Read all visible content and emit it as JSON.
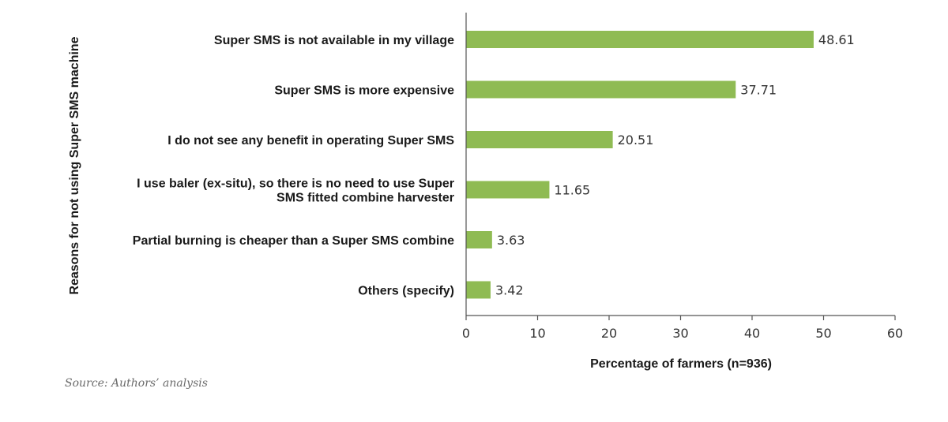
{
  "chart_data": {
    "type": "bar",
    "orientation": "horizontal",
    "categories": [
      [
        "Super SMS is not available in my village"
      ],
      [
        "Super SMS is more expensive"
      ],
      [
        "I do not see any benefit in operating Super SMS"
      ],
      [
        "I use baler (ex-situ), so there is no need to use Super",
        "SMS fitted combine harvester"
      ],
      [
        "Partial burning is cheaper than a Super SMS combine"
      ],
      [
        "Others (specify)"
      ]
    ],
    "values": [
      48.61,
      37.71,
      20.51,
      11.65,
      3.63,
      3.42
    ],
    "value_labels": [
      "48.61",
      "37.71",
      "20.51",
      "11.65",
      "3.63",
      "3.42"
    ],
    "xlabel": "Percentage of farmers (n=936)",
    "ylabel": "Reasons for not using Super SMS machine",
    "xlim": [
      0,
      60
    ],
    "xticks": [
      0,
      10,
      20,
      30,
      40,
      50,
      60
    ],
    "bar_color": "#8fbb53",
    "axis_color": "#555555",
    "grid": false,
    "legend": "none"
  },
  "source": "Source: Authors’ analysis"
}
